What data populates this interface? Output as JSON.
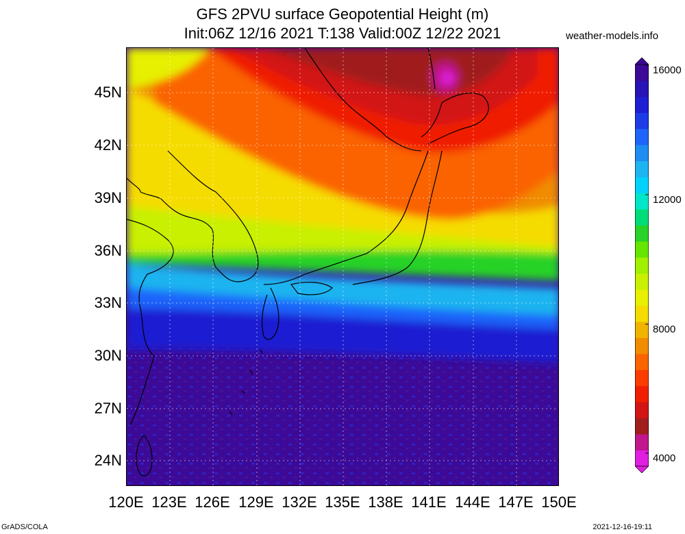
{
  "title": {
    "line1": "GFS 2PVU surface Geopotential Height (m)",
    "line2": "Init:06Z 12/16 2021 T:138 Valid:00Z 12/22 2021"
  },
  "credit": "weather-models.info",
  "latitude_labels": [
    "45N",
    "42N",
    "39N",
    "36N",
    "33N",
    "30N",
    "27N",
    "24N"
  ],
  "longitude_labels": [
    "120E",
    "123E",
    "126E",
    "129E",
    "132E",
    "135E",
    "138E",
    "141E",
    "144E",
    "147E",
    "150E"
  ],
  "colorbar": {
    "labels": [
      "16000",
      "12000",
      "8000",
      "4000"
    ],
    "colors": [
      "#e01ee0",
      "#c0178c",
      "#a01e1e",
      "#d21414",
      "#f01e00",
      "#fa3c00",
      "#fa6400",
      "#f08c00",
      "#f0b400",
      "#f5dc00",
      "#e6f000",
      "#c8f000",
      "#a0f000",
      "#64e600",
      "#28d228",
      "#00dc78",
      "#00e6c8",
      "#00d2fa",
      "#1eb4f0",
      "#1e8cf0",
      "#1e64fa",
      "#1e3ce6",
      "#1e1ed2",
      "#2814b4",
      "#3c0a96"
    ]
  },
  "map": {
    "region": "East Asia / Japan",
    "field": "2PVU surface geopotential height",
    "units": "m"
  },
  "footer": {
    "left": "GrADS/COLA",
    "right": "2021-12-16-19:11"
  }
}
